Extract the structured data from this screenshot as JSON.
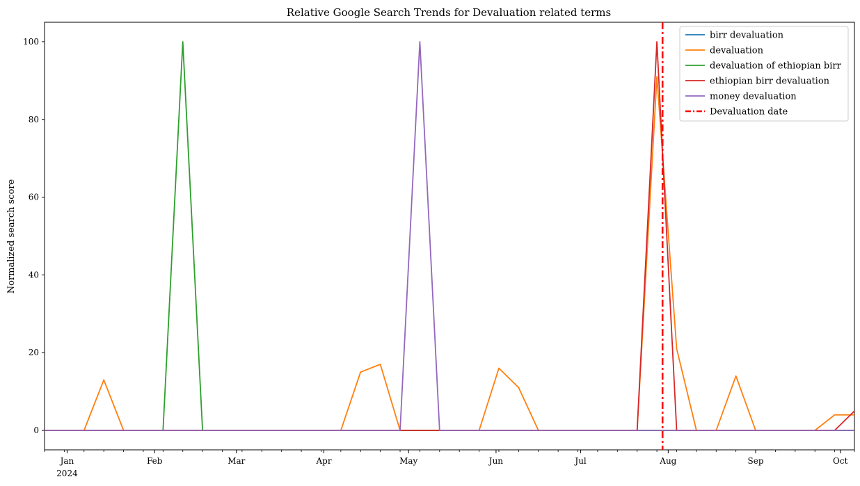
{
  "chart_data": {
    "type": "line",
    "title": "Relative Google Search Trends for Devaluation related terms",
    "xlabel": "",
    "ylabel": "Normalized search score",
    "x": [
      "2023-12-24",
      "2023-12-31",
      "2024-01-07",
      "2024-01-14",
      "2024-01-21",
      "2024-01-28",
      "2024-02-04",
      "2024-02-11",
      "2024-02-18",
      "2024-02-25",
      "2024-03-03",
      "2024-03-10",
      "2024-03-17",
      "2024-03-24",
      "2024-03-31",
      "2024-04-07",
      "2024-04-14",
      "2024-04-21",
      "2024-04-28",
      "2024-05-05",
      "2024-05-12",
      "2024-05-19",
      "2024-05-26",
      "2024-06-02",
      "2024-06-09",
      "2024-06-16",
      "2024-06-23",
      "2024-06-30",
      "2024-07-07",
      "2024-07-14",
      "2024-07-21",
      "2024-07-28",
      "2024-08-04",
      "2024-08-11",
      "2024-08-18",
      "2024-08-25",
      "2024-09-01",
      "2024-09-08",
      "2024-09-15",
      "2024-09-22",
      "2024-09-29",
      "2024-10-06"
    ],
    "xlim": [
      "2023-12-24",
      "2024-10-06"
    ],
    "x_ticks": [
      {
        "date": "2024-01-01",
        "label": "Jan",
        "sublabel": "2024"
      },
      {
        "date": "2024-02-01",
        "label": "Feb",
        "sublabel": ""
      },
      {
        "date": "2024-03-01",
        "label": "Mar",
        "sublabel": ""
      },
      {
        "date": "2024-04-01",
        "label": "Apr",
        "sublabel": ""
      },
      {
        "date": "2024-05-01",
        "label": "May",
        "sublabel": ""
      },
      {
        "date": "2024-06-01",
        "label": "Jun",
        "sublabel": ""
      },
      {
        "date": "2024-07-01",
        "label": "Jul",
        "sublabel": ""
      },
      {
        "date": "2024-08-01",
        "label": "Aug",
        "sublabel": ""
      },
      {
        "date": "2024-09-01",
        "label": "Sep",
        "sublabel": ""
      },
      {
        "date": "2024-10-01",
        "label": "Oct",
        "sublabel": ""
      }
    ],
    "ylim": [
      -5,
      105
    ],
    "y_ticks": [
      0,
      20,
      40,
      60,
      80,
      100
    ],
    "grid": false,
    "legend_position": "top-right",
    "series": [
      {
        "name": "birr devaluation",
        "color": "#1f77b4",
        "values": [
          0,
          0,
          0,
          0,
          0,
          0,
          0,
          0,
          0,
          0,
          0,
          0,
          0,
          0,
          0,
          0,
          0,
          0,
          0,
          0,
          0,
          0,
          0,
          0,
          0,
          0,
          0,
          0,
          0,
          0,
          0,
          0,
          0,
          0,
          0,
          0,
          0,
          0,
          0,
          0,
          0,
          0
        ]
      },
      {
        "name": "devaluation",
        "color": "#ff7f0e",
        "values": [
          0,
          0,
          0,
          13,
          0,
          0,
          0,
          0,
          0,
          0,
          0,
          0,
          0,
          0,
          0,
          0,
          15,
          17,
          0,
          0,
          0,
          0,
          0,
          16,
          11,
          0,
          0,
          0,
          0,
          0,
          0,
          91,
          21,
          0,
          0,
          14,
          0,
          0,
          0,
          0,
          4,
          4
        ]
      },
      {
        "name": "devaluation of ethiopian birr",
        "color": "#2ca02c",
        "values": [
          0,
          0,
          0,
          0,
          0,
          0,
          0,
          100,
          0,
          0,
          0,
          0,
          0,
          0,
          0,
          0,
          0,
          0,
          0,
          0,
          0,
          0,
          0,
          0,
          0,
          0,
          0,
          0,
          0,
          0,
          0,
          0,
          0,
          0,
          0,
          0,
          0,
          0,
          0,
          0,
          0,
          0
        ]
      },
      {
        "name": "ethiopian birr devaluation",
        "color": "#d62728",
        "values": [
          0,
          0,
          0,
          0,
          0,
          0,
          0,
          0,
          0,
          0,
          0,
          0,
          0,
          0,
          0,
          0,
          0,
          0,
          0,
          0,
          0,
          0,
          0,
          0,
          0,
          0,
          0,
          0,
          0,
          0,
          0,
          100,
          0,
          0,
          0,
          0,
          0,
          0,
          0,
          0,
          0,
          5
        ]
      },
      {
        "name": "money devaluation",
        "color": "#9467bd",
        "values": [
          0,
          0,
          0,
          0,
          0,
          0,
          0,
          0,
          0,
          0,
          0,
          0,
          0,
          0,
          0,
          0,
          0,
          0,
          0,
          100,
          0,
          0,
          0,
          0,
          0,
          0,
          0,
          0,
          0,
          0,
          0,
          0,
          0,
          0,
          0,
          0,
          0,
          0,
          0,
          0,
          0,
          0
        ]
      }
    ],
    "vlines": [
      {
        "name": "Devaluation date",
        "date": "2024-07-30",
        "color": "#ff0000",
        "style": "dash-dot"
      }
    ]
  }
}
